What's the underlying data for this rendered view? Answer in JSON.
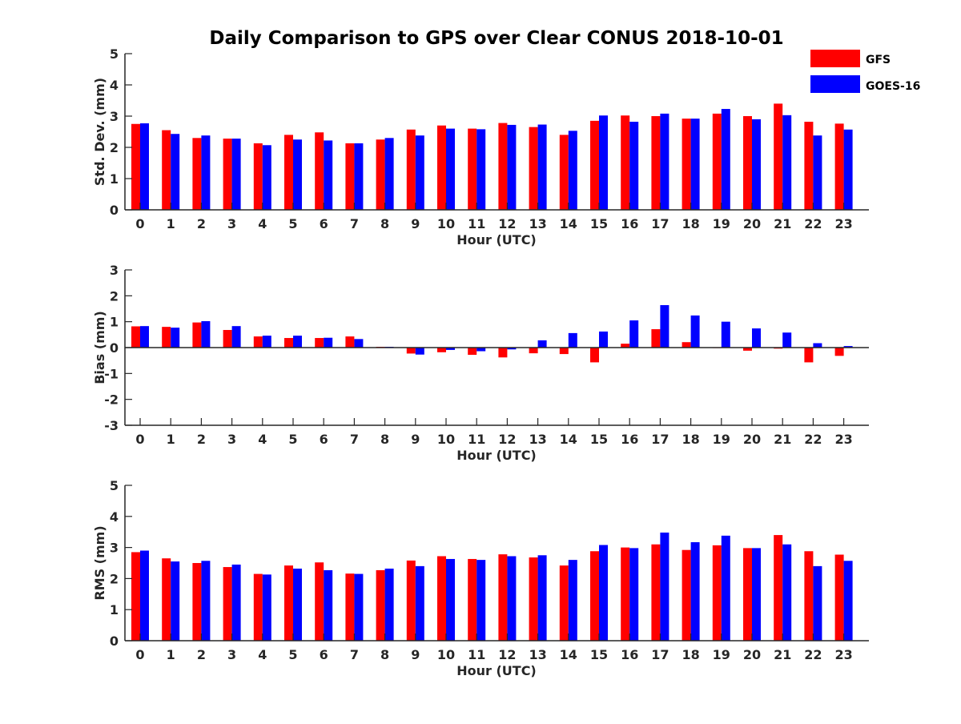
{
  "title": "Daily Comparison to GPS over Clear CONUS 2018-10-01",
  "legend": [
    {
      "name": "GFS",
      "color": "#ff0000"
    },
    {
      "name": "GOES-16",
      "color": "#0000ff"
    }
  ],
  "chart_data": [
    {
      "type": "bar",
      "title": "Daily Comparison to GPS over Clear CONUS 2018-10-01",
      "xlabel": "Hour (UTC)",
      "ylabel": "Std. Dev. (mm)",
      "ylim": [
        0,
        5
      ],
      "yticks": [
        0,
        1,
        2,
        3,
        4,
        5
      ],
      "categories": [
        "0",
        "1",
        "2",
        "3",
        "4",
        "5",
        "6",
        "7",
        "8",
        "9",
        "10",
        "11",
        "12",
        "13",
        "14",
        "15",
        "16",
        "17",
        "18",
        "19",
        "20",
        "21",
        "22",
        "23"
      ],
      "series": [
        {
          "name": "GFS",
          "color": "#ff0000",
          "values": [
            2.75,
            2.55,
            2.3,
            2.28,
            2.13,
            2.4,
            2.48,
            2.13,
            2.25,
            2.57,
            2.7,
            2.6,
            2.78,
            2.65,
            2.4,
            2.85,
            3.02,
            3.0,
            2.92,
            3.08,
            3.0,
            3.4,
            2.82,
            2.76
          ]
        },
        {
          "name": "GOES-16",
          "color": "#0000ff",
          "values": [
            2.77,
            2.43,
            2.38,
            2.28,
            2.07,
            2.25,
            2.22,
            2.13,
            2.3,
            2.38,
            2.6,
            2.58,
            2.72,
            2.73,
            2.53,
            3.02,
            2.82,
            3.08,
            2.92,
            3.23,
            2.9,
            3.03,
            2.38,
            2.57
          ]
        }
      ]
    },
    {
      "type": "bar",
      "xlabel": "Hour (UTC)",
      "ylabel": "Bias (mm)",
      "ylim": [
        -3,
        3
      ],
      "yticks": [
        -3,
        -2,
        -1,
        0,
        1,
        2,
        3
      ],
      "categories": [
        "0",
        "1",
        "2",
        "3",
        "4",
        "5",
        "6",
        "7",
        "8",
        "9",
        "10",
        "11",
        "12",
        "13",
        "14",
        "15",
        "16",
        "17",
        "18",
        "19",
        "20",
        "21",
        "22",
        "23"
      ],
      "series": [
        {
          "name": "GFS",
          "color": "#ff0000",
          "values": [
            0.82,
            0.8,
            0.97,
            0.68,
            0.43,
            0.37,
            0.37,
            0.43,
            0.03,
            -0.23,
            -0.18,
            -0.28,
            -0.38,
            -0.22,
            -0.25,
            -0.57,
            0.15,
            0.71,
            0.21,
            0.0,
            -0.12,
            -0.04,
            -0.57,
            -0.32
          ]
        },
        {
          "name": "GOES-16",
          "color": "#0000ff",
          "values": [
            0.83,
            0.77,
            1.02,
            0.83,
            0.46,
            0.46,
            0.38,
            0.33,
            0.03,
            -0.27,
            -0.09,
            -0.14,
            -0.07,
            0.28,
            0.56,
            0.62,
            1.05,
            1.64,
            1.24,
            1.0,
            0.74,
            0.58,
            0.17,
            0.06
          ]
        }
      ]
    },
    {
      "type": "bar",
      "xlabel": "Hour (UTC)",
      "ylabel": "RMS (mm)",
      "ylim": [
        0,
        5
      ],
      "yticks": [
        0,
        1,
        2,
        3,
        4,
        5
      ],
      "categories": [
        "0",
        "1",
        "2",
        "3",
        "4",
        "5",
        "6",
        "7",
        "8",
        "9",
        "10",
        "11",
        "12",
        "13",
        "14",
        "15",
        "16",
        "17",
        "18",
        "19",
        "20",
        "21",
        "22",
        "23"
      ],
      "series": [
        {
          "name": "GFS",
          "color": "#ff0000",
          "values": [
            2.85,
            2.65,
            2.5,
            2.37,
            2.15,
            2.42,
            2.52,
            2.16,
            2.27,
            2.58,
            2.72,
            2.63,
            2.78,
            2.68,
            2.42,
            2.88,
            3.0,
            3.1,
            2.92,
            3.07,
            2.98,
            3.4,
            2.88,
            2.77
          ]
        },
        {
          "name": "GOES-16",
          "color": "#0000ff",
          "values": [
            2.9,
            2.55,
            2.57,
            2.45,
            2.13,
            2.32,
            2.27,
            2.15,
            2.32,
            2.4,
            2.63,
            2.6,
            2.72,
            2.75,
            2.6,
            3.08,
            2.98,
            3.48,
            3.17,
            3.38,
            2.98,
            3.1,
            2.4,
            2.57
          ]
        }
      ]
    }
  ]
}
